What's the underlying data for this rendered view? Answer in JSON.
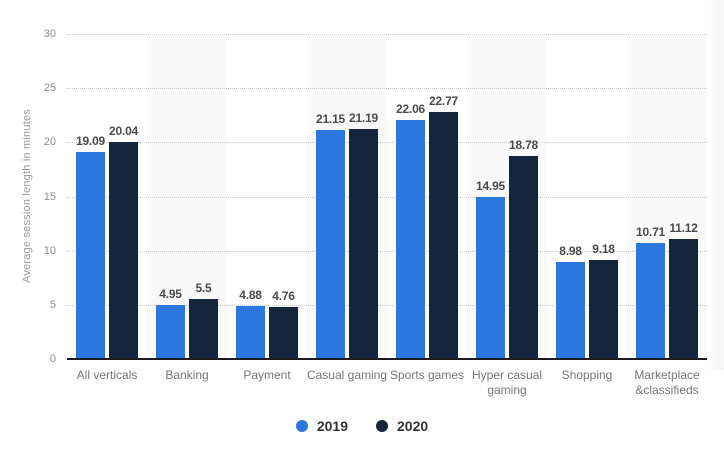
{
  "colors": {
    "series_2019": "#2b77dd",
    "series_2020": "#13263d",
    "band": "#f9f9f9",
    "gridline": "#c9c9c9",
    "baseline": "#1c1c1c",
    "tick_text": "#8c8c8c",
    "category_text": "#767676",
    "value_text": "#4a4a4a",
    "legend_text": "#333333",
    "background": "#ffffff"
  },
  "chart_data": {
    "type": "bar",
    "title": "",
    "xlabel": "",
    "ylabel": "Average session length in minutes",
    "ylim": [
      0,
      30
    ],
    "yticks": [
      0,
      5,
      10,
      15,
      20,
      25,
      30
    ],
    "grid": "horizontal-dotted",
    "legend_position": "bottom-center",
    "alternating_column_bands": true,
    "categories": [
      "All verticals",
      "Banking",
      "Payment",
      "Casual gaming",
      "Sports games",
      "Hyper casual gaming",
      "Shopping",
      "Marketplace &classifieds"
    ],
    "series": [
      {
        "name": "2019",
        "color": "#2b77dd",
        "values": [
          19.09,
          4.95,
          4.88,
          21.15,
          22.06,
          14.95,
          8.98,
          10.71
        ]
      },
      {
        "name": "2020",
        "color": "#13263d",
        "values": [
          20.04,
          5.5,
          4.76,
          21.19,
          22.77,
          18.78,
          9.18,
          11.12
        ]
      }
    ]
  }
}
